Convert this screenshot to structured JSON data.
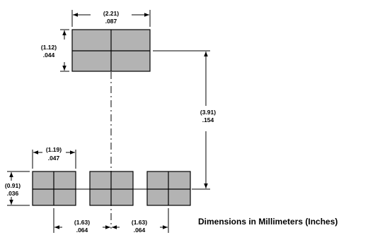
{
  "caption": "Dimensions in Millimeters (Inches)",
  "dimensions": {
    "top_width": {
      "mm": "(2.21)",
      "in": ".087"
    },
    "top_height": {
      "mm": "(1.12)",
      "in": ".044"
    },
    "spacing": {
      "mm": "(3.91)",
      "in": ".154"
    },
    "pad_width": {
      "mm": "(1.19)",
      "in": ".047"
    },
    "pad_height": {
      "mm": "(0.91)",
      "in": ".036"
    },
    "pitch_left": {
      "mm": "(1.63)",
      "in": ".064"
    },
    "pitch_right": {
      "mm": "(1.63)",
      "in": ".064"
    }
  },
  "colors": {
    "pad_fill": "#b3b3b3",
    "line": "#000000"
  }
}
